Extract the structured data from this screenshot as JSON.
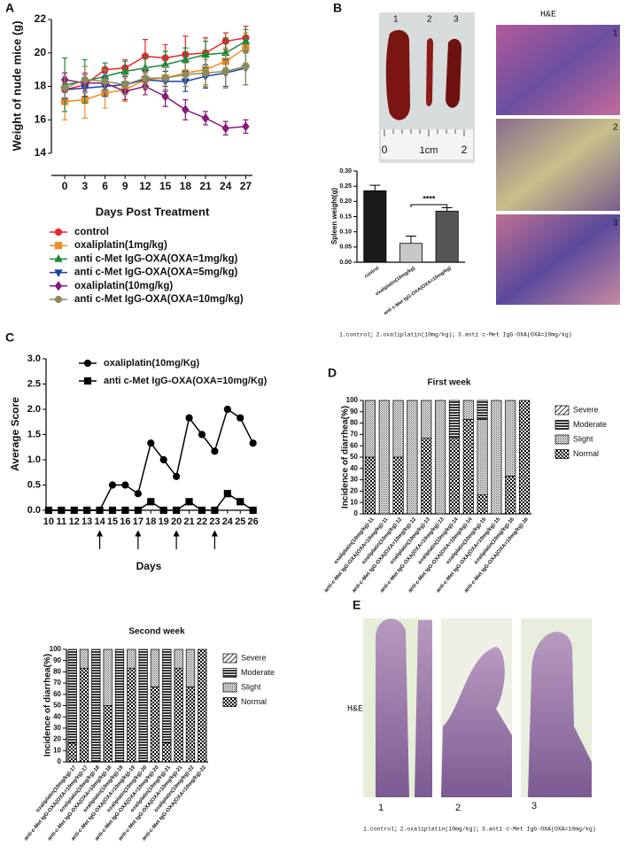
{
  "panel_labels": [
    "A",
    "B",
    "C",
    "D",
    "E"
  ],
  "spleen_photo": {
    "labels": [
      "1",
      "2",
      "3"
    ],
    "ruler": [
      "0",
      "1cm",
      "2"
    ]
  },
  "he_panel": {
    "title": "H&E",
    "labels": [
      "1",
      "2",
      "3"
    ]
  },
  "caption_b": "1.control；2.oxaliplatin(10mg/kg)；3.anti c-Met IgG-OXA(OXA=10mg/kg)",
  "panel_e": {
    "label": "H&E",
    "labels": [
      "1",
      "2",
      "3"
    ],
    "caption": "1.control；2.oxaliplatin(10mg/kg)；3.anti c-Met IgG-OXA(OXA=10mg/kg)"
  },
  "chart_data": [
    {
      "type": "line",
      "ylabel": "Weight of nude mice (g)",
      "xlabel": "Days Post Treatment",
      "x": [
        0,
        3,
        6,
        9,
        12,
        15,
        18,
        21,
        24,
        27
      ],
      "xlim": [
        -2,
        28
      ],
      "xticks": [
        0,
        3,
        6,
        9,
        12,
        15,
        18,
        21,
        24,
        27
      ],
      "ylim": [
        14,
        22
      ],
      "yticks": [
        14,
        16,
        18,
        20,
        22
      ],
      "series": [
        {
          "name": "control",
          "color": "#e8252a",
          "marker": "circle",
          "values": [
            17.8,
            18.1,
            19.0,
            19.1,
            19.8,
            19.7,
            19.9,
            20.0,
            20.7,
            20.9
          ],
          "errors": [
            0.6,
            0.7,
            0.4,
            0.5,
            1.0,
            0.8,
            1.1,
            0.9,
            0.5,
            0.7
          ]
        },
        {
          "name": "oxaliplatin(1mg/kg)",
          "color": "#f08a24",
          "marker": "square",
          "values": [
            17.1,
            17.2,
            17.6,
            17.8,
            18.4,
            18.5,
            18.8,
            19.0,
            19.5,
            20.3
          ],
          "errors": [
            1.1,
            1.1,
            0.9,
            0.7,
            0.6,
            0.7,
            0.8,
            0.9,
            0.8,
            0.9
          ]
        },
        {
          "name": "anti c-Met IgG-OXA(OXA=1mg/kg)",
          "color": "#1a8a3a",
          "marker": "triangle",
          "values": [
            18.1,
            18.3,
            18.6,
            18.9,
            19.1,
            19.3,
            19.6,
            19.9,
            20.0,
            20.7
          ],
          "errors": [
            1.6,
            1.3,
            0.8,
            0.6,
            0.7,
            0.8,
            0.7,
            0.8,
            0.9,
            0.7
          ]
        },
        {
          "name": "anti c-Met IgG-OXA(OXA=5mg/kg)",
          "color": "#1f3fa8",
          "marker": "triangle-down",
          "values": [
            17.8,
            17.9,
            18.0,
            18.1,
            18.4,
            18.3,
            18.3,
            18.6,
            18.8,
            19.1
          ],
          "errors": [
            0.5,
            0.5,
            0.6,
            0.5,
            0.5,
            0.6,
            0.6,
            0.7,
            0.8,
            1.0
          ]
        },
        {
          "name": "oxaliplatin(10mg/kg)",
          "color": "#8b1a7a",
          "marker": "diamond",
          "values": [
            18.4,
            18.2,
            18.2,
            17.7,
            18.0,
            17.4,
            16.6,
            16.1,
            15.5,
            15.6
          ],
          "errors": [
            0.4,
            0.5,
            0.6,
            0.5,
            0.5,
            0.6,
            0.6,
            0.4,
            0.4,
            0.4
          ]
        },
        {
          "name": "anti c-Met IgG-OXA(OXA=10mg/kg)",
          "color": "#8c8c5a",
          "marker": "circle",
          "values": [
            17.9,
            18.4,
            18.3,
            18.1,
            18.5,
            18.5,
            18.7,
            18.8,
            18.9,
            19.2
          ],
          "errors": [
            0.7,
            0.8,
            0.7,
            0.6,
            0.6,
            0.7,
            0.7,
            0.8,
            1.0,
            1.1
          ]
        }
      ]
    },
    {
      "type": "bar",
      "ylabel": "Spleen weight(g)",
      "categories": [
        "control",
        "oxaliplatin(10mg/kg)",
        "anti c-Met IgG-OXA(OXA=10mg/kg)"
      ],
      "values": [
        0.235,
        0.062,
        0.168
      ],
      "errors": [
        0.018,
        0.024,
        0.011
      ],
      "colors": [
        "#1a1a1a",
        "#c8c8c8",
        "#555555"
      ],
      "ylim": [
        0,
        0.3
      ],
      "yticks": [
        {
          "value": 0,
          "label": "0.00"
        },
        {
          "value": 0.05,
          "label": "0.05"
        },
        {
          "value": 0.1,
          "label": "0.10"
        },
        {
          "value": 0.15,
          "label": "0.15"
        },
        {
          "value": 0.2,
          "label": "0.20"
        },
        {
          "value": 0.25,
          "label": "0.25"
        },
        {
          "value": 0.3,
          "label": "0.30"
        }
      ],
      "significance": "****"
    },
    {
      "type": "line",
      "xlabel": "Days",
      "ylabel": "Average Score",
      "x": [
        10,
        11,
        12,
        13,
        14,
        15,
        16,
        17,
        18,
        19,
        20,
        21,
        22,
        23,
        24,
        25,
        26
      ],
      "xlim": [
        9.8,
        26.3
      ],
      "xticks": [
        10,
        11,
        12,
        13,
        14,
        15,
        16,
        17,
        18,
        19,
        20,
        21,
        22,
        23,
        24,
        25,
        26
      ],
      "ylim": [
        0,
        3
      ],
      "yticks": [
        {
          "value": 0,
          "label": "0.0"
        },
        {
          "value": 0.5,
          "label": "0.5"
        },
        {
          "value": 1,
          "label": "1.0"
        },
        {
          "value": 1.5,
          "label": "1.5"
        },
        {
          "value": 2,
          "label": "2.0"
        },
        {
          "value": 2.5,
          "label": "2.5"
        },
        {
          "value": 3,
          "label": "3.0"
        }
      ],
      "arrows": [
        14,
        17,
        20,
        23
      ],
      "series": [
        {
          "name": "oxaliplatin(10mg/Kg)",
          "color": "#000000",
          "marker": "circle",
          "values": [
            0,
            0,
            0,
            0,
            0,
            0.5,
            0.5,
            0.33,
            1.33,
            1.0,
            0.67,
            1.83,
            1.5,
            1.17,
            2.0,
            1.83,
            1.33
          ]
        },
        {
          "name": "anti c-Met IgG-OXA(OXA=10mg/Kg)",
          "color": "#000000",
          "marker": "square",
          "values": [
            0,
            0,
            0,
            0,
            0,
            0,
            0,
            0,
            0.17,
            0,
            0,
            0.17,
            0,
            0,
            0.33,
            0.17,
            0
          ]
        }
      ]
    },
    {
      "type": "stacked_bar",
      "title": "First week",
      "ylabel": "Incidence of diarrhea(%)",
      "categories": [
        "oxaliplatin(10mg/kg)-11",
        "anti-c-Met IgG-OXA(OXA=10mg/kg)-11",
        "oxaliplatin(10mg/kg)-12",
        "anti-c-Met IgG-OXA(OXA=10mg/kg)-12",
        "oxaliplatin(10mg/kg)-13",
        "anti-c-Met IgG-OXA(OXA=10mg/kg)-13",
        "oxaliplatin(10mg/kg)-14",
        "anti-c-Met IgG-OXA(OXA=10mg/kg)-14",
        "oxaliplatin(10mg/kg)-15",
        "anti-c-Met IgG-OXA(OXA=10mg/kg)-15",
        "oxaliplatin(10mg/kg)-16",
        "anti-c-Met IgG-OXA(OXA=10mg/kg)-16"
      ],
      "ylim": [
        0,
        100
      ],
      "yticks": [
        0,
        10,
        20,
        30,
        40,
        50,
        60,
        70,
        80,
        90,
        100
      ],
      "series": [
        {
          "name": "Severe",
          "pattern": "diagonal",
          "values": [
            0,
            0,
            0,
            0,
            0,
            0,
            0,
            0,
            0,
            0,
            0,
            0
          ]
        },
        {
          "name": "Moderate",
          "pattern": "horizontal",
          "values": [
            0,
            0,
            0,
            0,
            0,
            0,
            33.3,
            0,
            16.7,
            0,
            0,
            0
          ]
        },
        {
          "name": "Slight",
          "pattern": "dense",
          "values": [
            50,
            100,
            50,
            100,
            33.3,
            100,
            0,
            16.7,
            66.6,
            100,
            66.7,
            0
          ]
        },
        {
          "name": "Normal",
          "pattern": "checker",
          "values": [
            50,
            0,
            50,
            0,
            66.7,
            0,
            66.7,
            83.3,
            16.7,
            0,
            33.3,
            100
          ]
        }
      ]
    },
    {
      "type": "stacked_bar",
      "title": "Second week",
      "ylabel": "Incidence of diarrhea(%)",
      "categories": [
        "oxaliplatin(10mg/kg)-17",
        "anti-c-Met IgG-OXA(OXA=10mg/kg)-17",
        "oxaliplatin(10mg/kg)-18",
        "anti-c-Met IgG-OXA(OXA=10mg/kg)-18",
        "oxaliplatin(10mg/kg)-19",
        "anti-c-Met IgG-OXA(OXA=10mg/kg)-19",
        "oxaliplatin(10mg/kg)-20",
        "anti-c-Met IgG-OXA(OXA=10mg/kg)-20",
        "oxaliplatin(10mg/kg)-21",
        "anti-c-Met IgG-OXA(OXA=10mg/kg)-21",
        "oxaliplatin(10mg/kg)-22",
        "anti-c-Met IgG-OXA(OXA=10mg/kg)-22"
      ],
      "ylim": [
        0,
        100
      ],
      "yticks": [
        0,
        10,
        20,
        30,
        40,
        50,
        60,
        70,
        80,
        90,
        100
      ],
      "series": [
        {
          "name": "Severe",
          "pattern": "diagonal",
          "values": [
            0,
            0,
            0,
            0,
            0,
            0,
            0,
            0,
            0,
            0,
            0,
            0
          ]
        },
        {
          "name": "Moderate",
          "pattern": "horizontal",
          "values": [
            83.3,
            0,
            100,
            0,
            100,
            0,
            100,
            0,
            83.3,
            0,
            0,
            0
          ]
        },
        {
          "name": "Slight",
          "pattern": "dense",
          "values": [
            0,
            16.7,
            0,
            50,
            0,
            16.7,
            0,
            33.3,
            0,
            16.7,
            33.3,
            0
          ]
        },
        {
          "name": "Normal",
          "pattern": "checker",
          "values": [
            16.7,
            83.3,
            0,
            50,
            0,
            83.3,
            0,
            66.7,
            16.7,
            83.3,
            66.7,
            100
          ]
        }
      ]
    }
  ]
}
